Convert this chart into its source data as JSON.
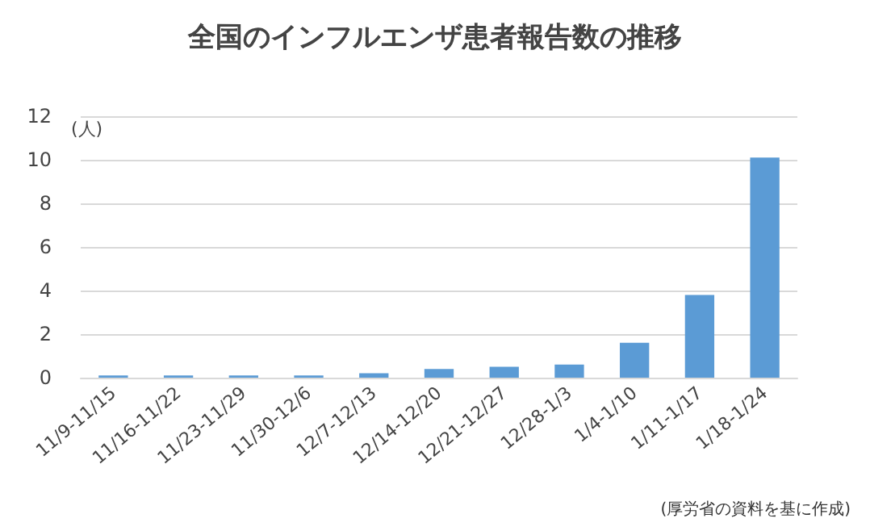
{
  "chart_data": {
    "type": "bar",
    "title": "全国のインフルエンザ患者報告数の推移",
    "ylabel": "(人)",
    "categories": [
      "11/9-11/15",
      "11/16-11/22",
      "11/23-11/29",
      "11/30-12/6",
      "12/7-12/13",
      "12/14-12/20",
      "12/21-12/27",
      "12/28-1/3",
      "1/4-1/10",
      "1/11-1/17",
      "1/18-1/24"
    ],
    "values": [
      0.1,
      0.1,
      0.1,
      0.1,
      0.2,
      0.4,
      0.5,
      0.6,
      1.6,
      3.8,
      10.1
    ],
    "color": "#5b9bd5",
    "ylim": [
      0,
      12
    ],
    "yticks": [
      0,
      2,
      4,
      6,
      8,
      10,
      12
    ],
    "grid": "y",
    "annotations": [
      "(厚労省の資料を基に作成)"
    ]
  }
}
